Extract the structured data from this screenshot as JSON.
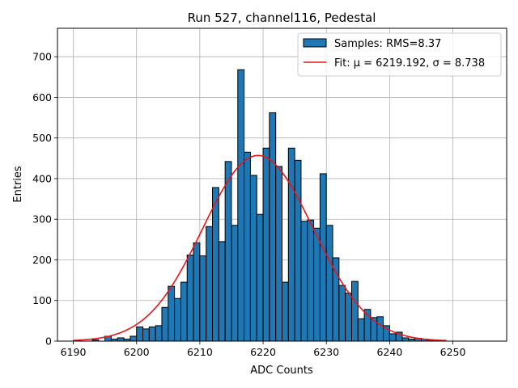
{
  "chart_data": {
    "type": "bar",
    "title": "Run 527, channel116, Pedestal",
    "xlabel": "ADC Counts",
    "ylabel": "Entries",
    "xlim": [
      6187.5,
      6258.5
    ],
    "ylim": [
      0,
      770
    ],
    "x_ticks": [
      6190,
      6200,
      6210,
      6220,
      6230,
      6240,
      6250
    ],
    "y_ticks": [
      0,
      100,
      200,
      300,
      400,
      500,
      600,
      700
    ],
    "grid": true,
    "legend_position": "top-right",
    "bins": {
      "start": 6190,
      "width": 1,
      "counts": [
        0,
        0,
        0,
        3,
        0,
        12,
        5,
        8,
        5,
        12,
        35,
        30,
        35,
        38,
        83,
        135,
        105,
        145,
        212,
        242,
        210,
        282,
        378,
        245,
        442,
        285,
        668,
        465,
        408,
        312,
        475,
        562,
        430,
        145,
        475,
        445,
        295,
        298,
        278,
        412,
        285,
        205,
        137,
        118,
        147,
        55,
        78,
        58,
        60,
        38,
        18,
        22,
        8,
        5,
        7,
        5,
        2,
        0
      ]
    },
    "series": [
      {
        "name": "Samples: RMS=8.37",
        "kind": "histogram",
        "color": "#1f77b4"
      },
      {
        "name": "Fit: μ = 6219.192, σ = 8.738",
        "kind": "gaussian_fit",
        "color": "#e8141c",
        "mu": 6219.192,
        "sigma": 8.738,
        "amplitude": 457,
        "x_range": [
          6190,
          6249
        ]
      }
    ]
  }
}
